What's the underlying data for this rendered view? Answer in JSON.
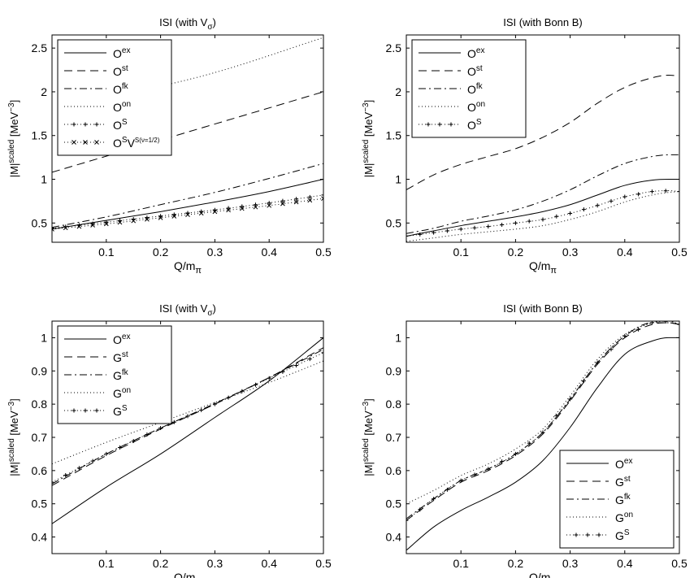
{
  "figure": {
    "xlabel": "Q/m",
    "xlabel_sub": "π",
    "ylabel_prefix": "|M|",
    "ylabel_sup": "scaled",
    "ylabel_units": " [MeV",
    "ylabel_units_sup": "−3",
    "ylabel_units_close": "]"
  },
  "chart_data": [
    {
      "id": "tl",
      "type": "line",
      "title": "ISI (with V",
      "title_sub": "σ",
      "title_close": ")",
      "xlim": [
        0,
        0.5
      ],
      "ylim": [
        0.28,
        2.65
      ],
      "xticks": [
        0.1,
        0.2,
        0.3,
        0.4,
        0.5
      ],
      "yticks": [
        0.5,
        1,
        1.5,
        2,
        2.5
      ],
      "show_xlabel": true,
      "legend_position": "top-left",
      "series": [
        {
          "base": "O",
          "sup": "ex",
          "style": "solid",
          "marker": "none",
          "x": [
            0,
            0.1,
            0.2,
            0.3,
            0.4,
            0.5
          ],
          "y": [
            0.43,
            0.53,
            0.63,
            0.74,
            0.86,
            1.0
          ]
        },
        {
          "base": "O",
          "sup": "st",
          "style": "dashed",
          "marker": "none",
          "x": [
            0,
            0.5
          ],
          "y": [
            1.08,
            2.0
          ]
        },
        {
          "base": "O",
          "sup": "fk",
          "style": "dashdot",
          "marker": "none",
          "x": [
            0,
            0.1,
            0.2,
            0.3,
            0.4,
            0.5
          ],
          "y": [
            0.45,
            0.57,
            0.71,
            0.85,
            1.01,
            1.18
          ]
        },
        {
          "base": "O",
          "sup": "on",
          "style": "dotted",
          "marker": "none",
          "x": [
            0.15,
            0.3,
            0.5
          ],
          "y": [
            1.99,
            2.22,
            2.62
          ]
        },
        {
          "base": "O",
          "sup": "S",
          "style": "dotted",
          "marker": "plus",
          "x": [
            0,
            0.1,
            0.2,
            0.3,
            0.4,
            0.5
          ],
          "y": [
            0.44,
            0.51,
            0.58,
            0.65,
            0.73,
            0.82
          ]
        },
        {
          "base": "O",
          "sup": "S",
          "extra": "V",
          "extra_sup": "S(ν=1/2)",
          "style": "dotted",
          "marker": "x",
          "x": [
            0,
            0.1,
            0.2,
            0.3,
            0.4,
            0.5
          ],
          "y": [
            0.43,
            0.49,
            0.56,
            0.63,
            0.7,
            0.78
          ]
        }
      ]
    },
    {
      "id": "tr",
      "type": "line",
      "title": "ISI (with Bonn B)",
      "xlim": [
        0,
        0.5
      ],
      "ylim": [
        0.28,
        2.65
      ],
      "xticks": [
        0.1,
        0.2,
        0.3,
        0.4,
        0.5
      ],
      "yticks": [
        0.5,
        1,
        1.5,
        2,
        2.5
      ],
      "show_xlabel": true,
      "legend_position": "top-left",
      "series": [
        {
          "base": "O",
          "sup": "ex",
          "style": "solid",
          "marker": "none",
          "x": [
            0,
            0.05,
            0.1,
            0.15,
            0.2,
            0.25,
            0.3,
            0.35,
            0.4,
            0.45,
            0.48,
            0.5
          ],
          "y": [
            0.35,
            0.41,
            0.47,
            0.52,
            0.57,
            0.63,
            0.71,
            0.82,
            0.93,
            0.99,
            1.0,
            1.0
          ]
        },
        {
          "base": "O",
          "sup": "st",
          "style": "dashed",
          "marker": "none",
          "x": [
            0,
            0.05,
            0.1,
            0.15,
            0.2,
            0.25,
            0.3,
            0.35,
            0.4,
            0.45,
            0.48,
            0.5
          ],
          "y": [
            0.88,
            1.05,
            1.17,
            1.26,
            1.35,
            1.48,
            1.65,
            1.87,
            2.05,
            2.16,
            2.19,
            2.18
          ]
        },
        {
          "base": "O",
          "sup": "fk",
          "style": "dashdot",
          "marker": "none",
          "x": [
            0,
            0.05,
            0.1,
            0.15,
            0.2,
            0.25,
            0.3,
            0.35,
            0.4,
            0.45,
            0.48,
            0.5
          ],
          "y": [
            0.38,
            0.44,
            0.52,
            0.58,
            0.65,
            0.75,
            0.88,
            1.04,
            1.18,
            1.26,
            1.28,
            1.28
          ]
        },
        {
          "base": "O",
          "sup": "on",
          "style": "dotted",
          "marker": "none",
          "x": [
            0,
            0.05,
            0.1,
            0.15,
            0.2,
            0.25,
            0.3,
            0.35,
            0.4,
            0.45,
            0.48,
            0.5
          ],
          "y": [
            0.29,
            0.33,
            0.37,
            0.4,
            0.43,
            0.47,
            0.54,
            0.63,
            0.74,
            0.82,
            0.85,
            0.86
          ]
        },
        {
          "base": "O",
          "sup": "S",
          "style": "dotted",
          "marker": "plus",
          "x": [
            0,
            0.05,
            0.1,
            0.15,
            0.2,
            0.25,
            0.3,
            0.35,
            0.4,
            0.45,
            0.48,
            0.5
          ],
          "y": [
            0.35,
            0.39,
            0.43,
            0.46,
            0.5,
            0.54,
            0.61,
            0.7,
            0.8,
            0.86,
            0.87,
            0.86
          ]
        }
      ]
    },
    {
      "id": "bl",
      "type": "line",
      "title": "ISI (with V",
      "title_sub": "σ",
      "title_close": ")",
      "xlim": [
        0,
        0.5
      ],
      "ylim": [
        0.35,
        1.05
      ],
      "xticks": [
        0.1,
        0.2,
        0.3,
        0.4,
        0.5
      ],
      "yticks": [
        0.4,
        0.5,
        0.6,
        0.7,
        0.8,
        0.9,
        1
      ],
      "show_xlabel": true,
      "legend_position": "top-left",
      "series": [
        {
          "base": "O",
          "sup": "ex",
          "style": "solid",
          "marker": "none",
          "x": [
            0,
            0.1,
            0.2,
            0.3,
            0.4,
            0.5
          ],
          "y": [
            0.44,
            0.55,
            0.65,
            0.76,
            0.87,
            1.0
          ]
        },
        {
          "base": "G",
          "sup": "st",
          "style": "dashed",
          "marker": "none",
          "x": [
            0,
            0.1,
            0.2,
            0.3,
            0.4,
            0.5
          ],
          "y": [
            0.555,
            0.645,
            0.725,
            0.8,
            0.88,
            0.97
          ]
        },
        {
          "base": "G",
          "sup": "fk",
          "style": "dashdot",
          "marker": "none",
          "x": [
            0,
            0.1,
            0.2,
            0.3,
            0.4,
            0.5
          ],
          "y": [
            0.56,
            0.65,
            0.728,
            0.802,
            0.88,
            0.965
          ]
        },
        {
          "base": "G",
          "sup": "on",
          "style": "dotted",
          "marker": "none",
          "x": [
            0,
            0.1,
            0.2,
            0.3,
            0.4,
            0.5
          ],
          "y": [
            0.62,
            0.685,
            0.745,
            0.805,
            0.865,
            0.93
          ]
        },
        {
          "base": "G",
          "sup": "S",
          "style": "dotted",
          "marker": "plus",
          "x": [
            0,
            0.1,
            0.2,
            0.3,
            0.4,
            0.5
          ],
          "y": [
            0.565,
            0.65,
            0.728,
            0.8,
            0.878,
            0.955
          ]
        }
      ]
    },
    {
      "id": "br",
      "type": "line",
      "title": "ISI (with Bonn B)",
      "xlim": [
        0,
        0.5
      ],
      "ylim": [
        0.35,
        1.05
      ],
      "xticks": [
        0.1,
        0.2,
        0.3,
        0.4,
        0.5
      ],
      "yticks": [
        0.4,
        0.5,
        0.6,
        0.7,
        0.8,
        0.9,
        1
      ],
      "show_xlabel": true,
      "legend_position": "bottom-right",
      "series": [
        {
          "base": "O",
          "sup": "ex",
          "style": "solid",
          "marker": "none",
          "x": [
            0,
            0.05,
            0.1,
            0.15,
            0.2,
            0.25,
            0.3,
            0.35,
            0.4,
            0.45,
            0.48,
            0.5
          ],
          "y": [
            0.36,
            0.43,
            0.48,
            0.52,
            0.565,
            0.63,
            0.73,
            0.85,
            0.95,
            0.99,
            1.0,
            1.0
          ]
        },
        {
          "base": "G",
          "sup": "st",
          "style": "dashed",
          "marker": "none",
          "x": [
            0,
            0.05,
            0.1,
            0.15,
            0.2,
            0.25,
            0.3,
            0.35,
            0.4,
            0.45,
            0.48,
            0.5
          ],
          "y": [
            0.45,
            0.51,
            0.565,
            0.6,
            0.645,
            0.71,
            0.81,
            0.92,
            1.0,
            1.04,
            1.045,
            1.04
          ]
        },
        {
          "base": "G",
          "sup": "fk",
          "style": "dashdot",
          "marker": "none",
          "x": [
            0,
            0.05,
            0.1,
            0.15,
            0.2,
            0.25,
            0.3,
            0.35,
            0.4,
            0.45,
            0.48,
            0.5
          ],
          "y": [
            0.455,
            0.515,
            0.57,
            0.605,
            0.65,
            0.715,
            0.815,
            0.925,
            1.005,
            1.045,
            1.045,
            1.04
          ]
        },
        {
          "base": "G",
          "sup": "on",
          "style": "dotted",
          "marker": "none",
          "x": [
            0,
            0.05,
            0.1,
            0.15,
            0.2,
            0.25,
            0.3,
            0.35,
            0.4,
            0.45,
            0.48,
            0.5
          ],
          "y": [
            0.5,
            0.54,
            0.585,
            0.62,
            0.665,
            0.725,
            0.825,
            0.935,
            1.01,
            1.045,
            1.05,
            1.04
          ]
        },
        {
          "base": "G",
          "sup": "S",
          "style": "dotted",
          "marker": "plus",
          "x": [
            0,
            0.05,
            0.1,
            0.15,
            0.2,
            0.25,
            0.3,
            0.35,
            0.4,
            0.45,
            0.48,
            0.5
          ],
          "y": [
            0.45,
            0.515,
            0.57,
            0.605,
            0.65,
            0.715,
            0.815,
            0.925,
            1.005,
            1.045,
            1.05,
            1.04
          ]
        }
      ]
    }
  ]
}
